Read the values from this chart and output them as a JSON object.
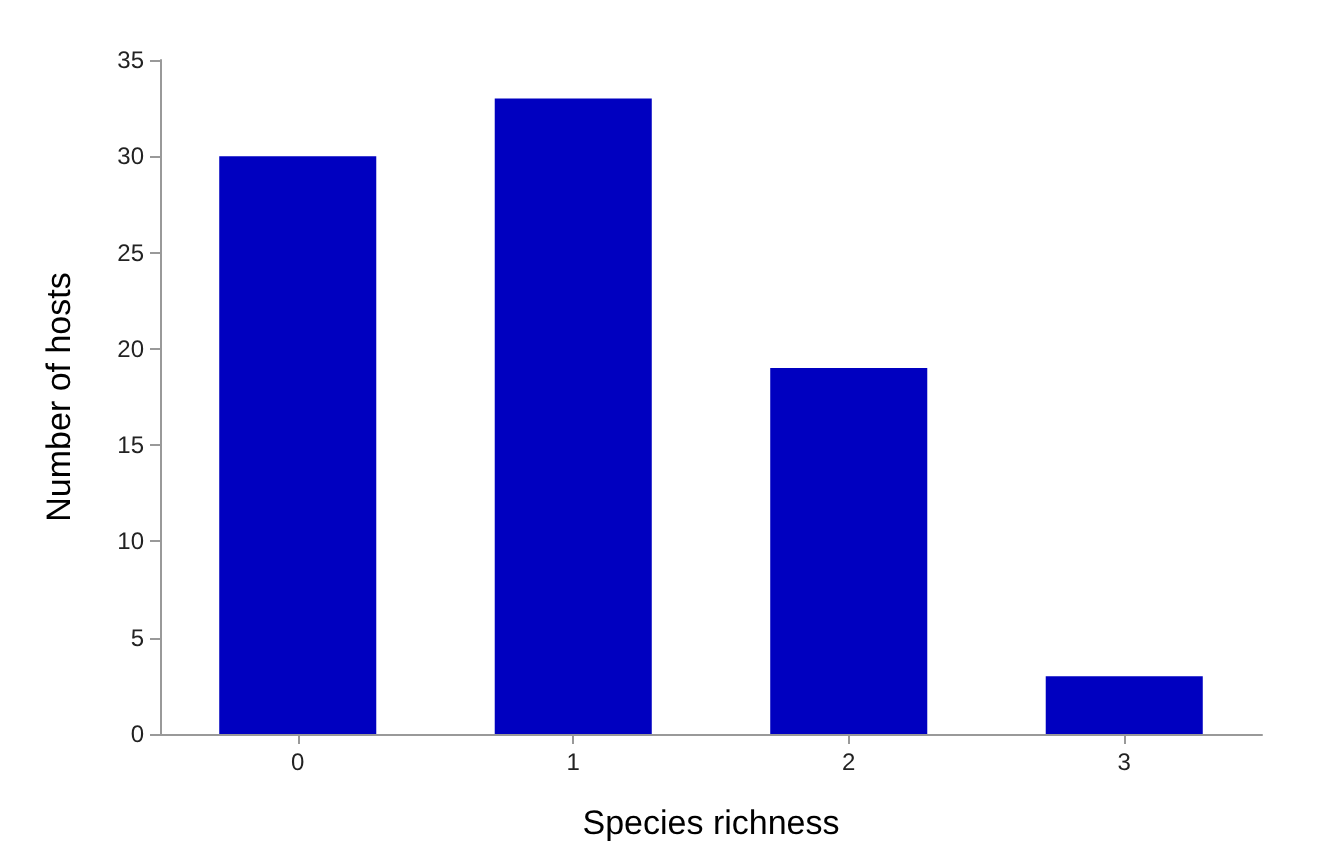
{
  "chart_data": {
    "type": "bar",
    "xlabel": "Species richness",
    "ylabel": "Number of hosts",
    "categories": [
      "0",
      "1",
      "2",
      "3"
    ],
    "values": [
      30,
      33,
      19,
      3
    ],
    "color": "#0000c0",
    "ylim": [
      0,
      35
    ],
    "yticks": [
      0,
      5,
      10,
      15,
      20,
      25,
      30,
      35
    ],
    "grid": false
  }
}
